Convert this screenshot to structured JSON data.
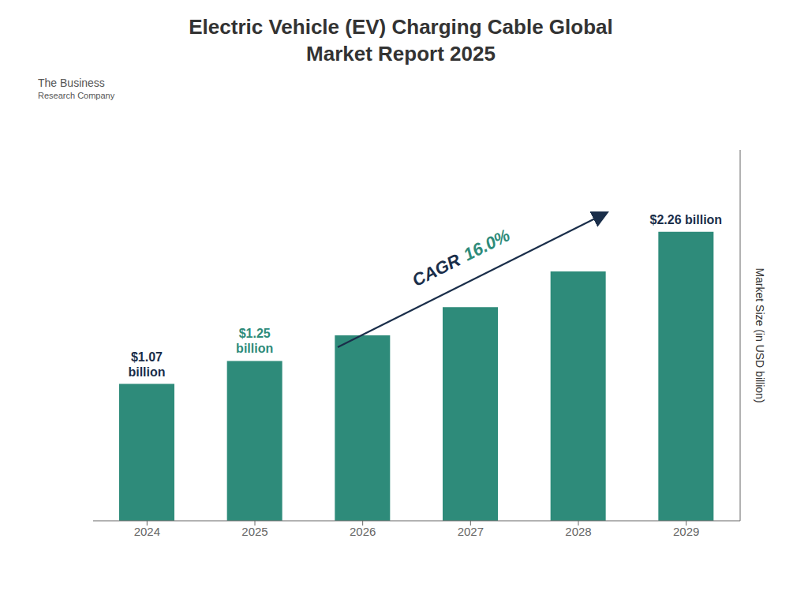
{
  "chart_data": {
    "type": "bar",
    "title": "Electric Vehicle (EV) Charging Cable Global\nMarket Report 2025",
    "categories": [
      "2024",
      "2025",
      "2026",
      "2027",
      "2028",
      "2029"
    ],
    "values": [
      1.07,
      1.25,
      1.45,
      1.67,
      1.95,
      2.26
    ],
    "color": "#2e8b7a",
    "ylabel": "Market Size (in USD billion)",
    "ylim": [
      0,
      2.9
    ],
    "tick_labels": "x",
    "grid": false,
    "annotations": [
      {
        "text": "$1.07\nbillion",
        "category": "2024",
        "color": "#1a2e4a"
      },
      {
        "text": "$1.25\nbillion",
        "category": "2025",
        "color": "#2e8b7a"
      },
      {
        "text": "$2.26 billion",
        "category": "2029",
        "color": "#1a2e4a"
      },
      {
        "text": [
          "CAGR",
          "16.0%"
        ],
        "colors": [
          "#1a2e4a",
          "#2e8b7a"
        ]
      },
      {
        "text": [
          "The Business",
          "Research Company"
        ],
        "color": "#555555"
      }
    ]
  }
}
